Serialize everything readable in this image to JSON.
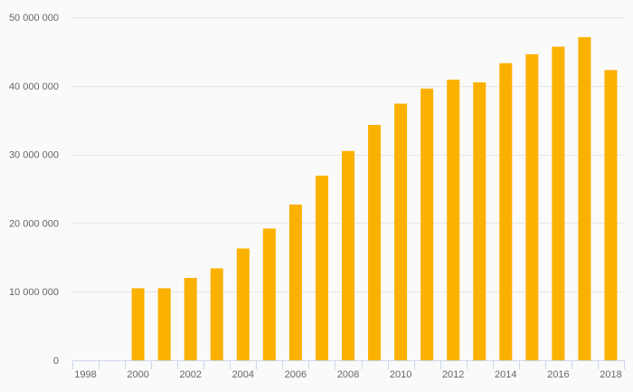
{
  "chart_data": {
    "type": "bar",
    "title": "",
    "xlabel": "",
    "ylabel": "",
    "categories": [
      "1998",
      "1999",
      "2000",
      "2001",
      "2002",
      "2003",
      "2004",
      "2005",
      "2006",
      "2007",
      "2008",
      "2009",
      "2010",
      "2011",
      "2012",
      "2013",
      "2014",
      "2015",
      "2016",
      "2017",
      "2018"
    ],
    "x_tick_labels": [
      "1998",
      "2000",
      "2002",
      "2004",
      "2006",
      "2008",
      "2010",
      "2012",
      "2014",
      "2016",
      "2018"
    ],
    "values": [
      0,
      0,
      10500000,
      10500000,
      12000000,
      13400000,
      16300000,
      19200000,
      22700000,
      26900000,
      30500000,
      34300000,
      37400000,
      39600000,
      40900000,
      40500000,
      43300000,
      44600000,
      45700000,
      47100000,
      42300000
    ],
    "ylim": [
      0,
      50000000
    ],
    "y_ticks": [
      0,
      10000000,
      20000000,
      30000000,
      40000000,
      50000000
    ],
    "y_tick_labels": [
      "0",
      "10 000 000",
      "20 000 000",
      "30 000 000",
      "40 000 000",
      "50 000 000"
    ],
    "grid": true,
    "legend": "none",
    "colors": {
      "bar": "#fbb100",
      "grid": "#e6e6e6",
      "axis": "#ccd6eb",
      "label": "#666666",
      "background": "#fafafa"
    }
  }
}
